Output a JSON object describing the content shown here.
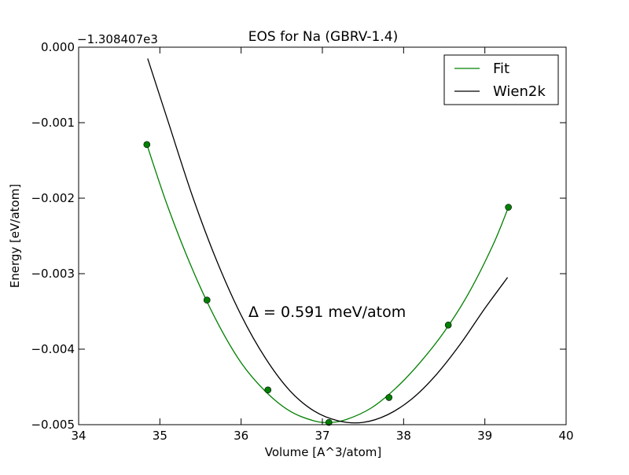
{
  "chart_data": {
    "type": "line",
    "title": "EOS for Na (GBRV-1.4)",
    "xlabel": "Volume [A^3/atom]",
    "ylabel": "Energy [eV/atom]",
    "offset_label": "−1.308407e3",
    "annotation": "Δ = 0.591 meV/atom",
    "xlim": [
      34,
      40
    ],
    "ylim": [
      -0.005,
      0.0
    ],
    "xticks": [
      34,
      35,
      36,
      37,
      38,
      39,
      40
    ],
    "xtick_labels": [
      "34",
      "35",
      "36",
      "37",
      "38",
      "39",
      "40"
    ],
    "yticks": [
      0.0,
      -0.001,
      -0.002,
      -0.003,
      -0.004,
      -0.005
    ],
    "ytick_labels": [
      "0.000",
      "−0.001",
      "−0.002",
      "−0.003",
      "−0.004",
      "−0.005"
    ],
    "grid": false,
    "legend_position": "top-right",
    "series": [
      {
        "name": "Fit",
        "color": "#008000",
        "x": [
          34.84,
          35.1,
          35.4,
          35.7,
          36.0,
          36.3,
          36.6,
          36.9,
          37.1,
          37.3,
          37.6,
          37.9,
          38.2,
          38.5,
          38.8,
          39.1,
          39.29
        ],
        "y": [
          -0.00129,
          -0.00212,
          -0.00294,
          -0.00363,
          -0.00418,
          -0.00456,
          -0.00482,
          -0.00495,
          -0.00497,
          -0.00493,
          -0.00478,
          -0.00452,
          -0.00418,
          -0.00377,
          -0.00326,
          -0.00262,
          -0.00212
        ]
      },
      {
        "name": "Wien2k",
        "color": "#000000",
        "x": [
          34.85,
          35.1,
          35.4,
          35.7,
          36.0,
          36.3,
          36.6,
          36.9,
          37.2,
          37.5,
          37.8,
          38.1,
          38.4,
          38.7,
          39.0,
          39.28
        ],
        "y": [
          -0.00015,
          -0.00098,
          -0.00197,
          -0.00283,
          -0.00355,
          -0.00412,
          -0.00455,
          -0.00482,
          -0.00495,
          -0.00497,
          -0.00487,
          -0.00466,
          -0.00434,
          -0.00393,
          -0.00346,
          -0.00305
        ]
      }
    ],
    "points": {
      "name": "data points",
      "color": "#008000",
      "x": [
        34.84,
        35.58,
        36.33,
        37.08,
        37.82,
        38.55,
        39.29
      ],
      "y": [
        -0.00129,
        -0.00335,
        -0.00454,
        -0.00497,
        -0.00464,
        -0.00368,
        -0.00212
      ]
    }
  }
}
